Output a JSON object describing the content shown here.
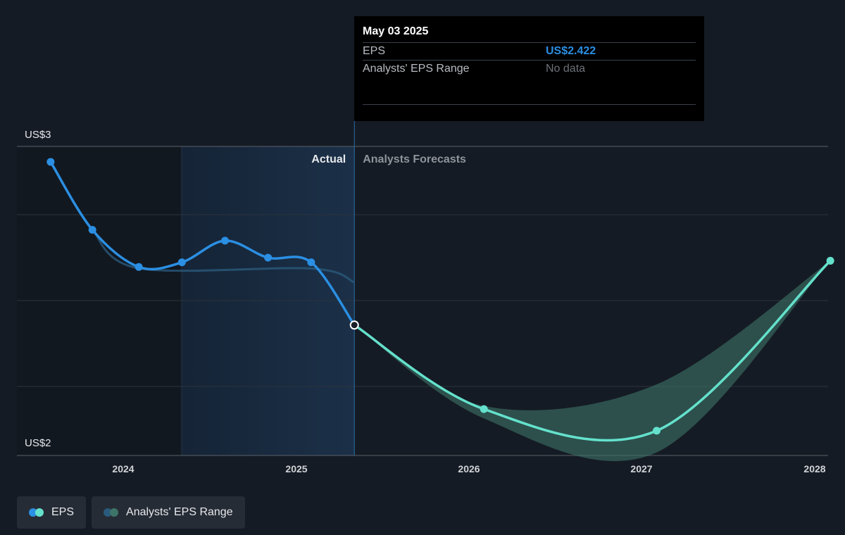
{
  "tooltip": {
    "date": "May 03 2025",
    "rows": [
      {
        "label": "EPS",
        "value": "US$2.422"
      },
      {
        "label": "Analysts' EPS Range",
        "value": "No data"
      }
    ]
  },
  "legend": {
    "eps_label": "EPS",
    "range_label": "Analysts' EPS Range"
  },
  "colors": {
    "background": "#151b24",
    "actual_line": "#2b8fe3",
    "forecast_line": "#64e1cc",
    "range_fill": "#3d7468",
    "highlight": "#1b3048"
  },
  "chart_data": {
    "type": "line",
    "title": "",
    "xlabel": "",
    "ylabel": "",
    "y_axis": {
      "min_label": "US$2",
      "max_label": "US$3",
      "ylim": [
        2.0,
        3.0
      ]
    },
    "x_ticks": [
      2024,
      2025,
      2026,
      2027,
      2028
    ],
    "section_labels": {
      "actual": "Actual",
      "forecast": "Analysts Forecasts"
    },
    "divider_date": "2025-05-03",
    "series": [
      {
        "name": "EPS",
        "points": [
          {
            "date": "2023-08-01",
            "value": 2.95
          },
          {
            "date": "2023-10-28",
            "value": 2.73
          },
          {
            "date": "2024-02-03",
            "value": 2.61
          },
          {
            "date": "2024-05-04",
            "value": 2.625
          },
          {
            "date": "2024-08-03",
            "value": 2.695
          },
          {
            "date": "2024-11-02",
            "value": 2.64
          },
          {
            "date": "2025-02-01",
            "value": 2.625
          },
          {
            "date": "2025-05-03",
            "value": 2.422
          }
        ]
      },
      {
        "name": "EPS Forecast",
        "points": [
          {
            "date": "2025-05-03",
            "value": 2.422
          },
          {
            "date": "2026-01-31",
            "value": 2.15
          },
          {
            "date": "2027-01-30",
            "value": 2.08
          },
          {
            "date": "2028-01-31",
            "value": 2.63
          }
        ]
      }
    ],
    "range": [
      {
        "date": "2025-05-03",
        "low": 2.422,
        "high": 2.422
      },
      {
        "date": "2026-01-31",
        "low": 2.12,
        "high": 2.16
      },
      {
        "date": "2027-01-30",
        "low": 2.01,
        "high": 2.23
      },
      {
        "date": "2028-01-31",
        "low": 2.63,
        "high": 2.63
      }
    ]
  }
}
